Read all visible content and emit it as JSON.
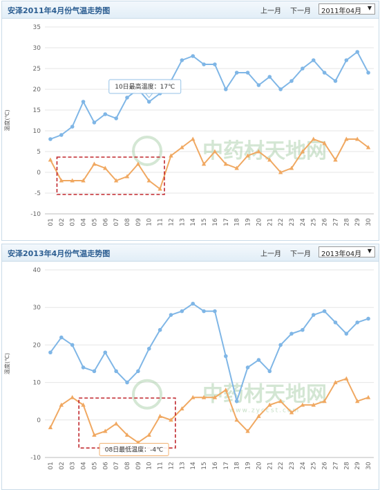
{
  "panels": [
    {
      "title": "安泽2011年4月份气温走势图",
      "prev_label": "上一月",
      "next_label": "下一月",
      "month_select": "2011年04月",
      "ylabel": "温度(℃)",
      "tooltip": "10日最高温度：17℃",
      "watermark": "中药材天地网",
      "watermark_url": ""
    },
    {
      "title": "安泽2013年4月份气温走势图",
      "prev_label": "上一月",
      "next_label": "下一月",
      "month_select": "2013年04月",
      "ylabel": "温度(℃)",
      "tooltip": "08日最低温度：-4℃",
      "watermark": "中药材天地网",
      "watermark_url": "www.zyccst.com"
    }
  ],
  "colors": {
    "high": "#7fb6e6",
    "low": "#f0a861",
    "highlight_box": "#c0262c"
  },
  "chart_data": [
    {
      "type": "line",
      "title": "安泽2011年4月份气温走势图",
      "ylabel": "温度(℃)",
      "ylim": [
        -10,
        35
      ],
      "yticks": [
        -10,
        -5,
        0,
        5,
        10,
        15,
        20,
        25,
        30,
        35
      ],
      "categories": [
        "01",
        "02",
        "03",
        "04",
        "05",
        "06",
        "07",
        "08",
        "09",
        "10",
        "11",
        "12",
        "13",
        "14",
        "15",
        "16",
        "17",
        "18",
        "19",
        "20",
        "21",
        "22",
        "23",
        "24",
        "25",
        "26",
        "27",
        "28",
        "29",
        "30"
      ],
      "series": [
        {
          "values": [
            8,
            9,
            11,
            17,
            12,
            14,
            13,
            18,
            20,
            17,
            19,
            22,
            27,
            28,
            26,
            26,
            20,
            24,
            24,
            21,
            23,
            20,
            22,
            25,
            27,
            24,
            22,
            27,
            29,
            24
          ],
          "color": "#7fb6e6"
        },
        {
          "values": [
            3,
            -2,
            -2,
            -2,
            2,
            1,
            -2,
            -1,
            2,
            -2,
            -4,
            4,
            6,
            8,
            2,
            5,
            2,
            1,
            4,
            5,
            3,
            0,
            1,
            5,
            8,
            7,
            3,
            8,
            8,
            6
          ],
          "color": "#f0a861"
        }
      ],
      "highlight_range": [
        2,
        11
      ],
      "grid": true
    },
    {
      "type": "line",
      "title": "安泽2013年4月份气温走势图",
      "ylabel": "温度(℃)",
      "ylim": [
        -10,
        40
      ],
      "yticks": [
        -10,
        0,
        10,
        20,
        30,
        40
      ],
      "categories": [
        "01",
        "02",
        "03",
        "04",
        "05",
        "06",
        "07",
        "08",
        "09",
        "10",
        "11",
        "12",
        "13",
        "14",
        "15",
        "16",
        "17",
        "18",
        "19",
        "20",
        "21",
        "22",
        "23",
        "24",
        "25",
        "26",
        "27",
        "28",
        "29",
        "30"
      ],
      "series": [
        {
          "values": [
            18,
            22,
            20,
            14,
            13,
            18,
            13,
            10,
            13,
            19,
            24,
            28,
            29,
            31,
            29,
            29,
            17,
            5,
            14,
            16,
            13,
            20,
            23,
            24,
            28,
            29,
            26,
            23,
            26,
            27
          ],
          "color": "#7fb6e6"
        },
        {
          "values": [
            -2,
            4,
            6,
            4,
            -4,
            -3,
            -1,
            -4,
            -6,
            -4,
            1,
            0,
            3,
            6,
            6,
            6,
            8,
            0,
            -3,
            1,
            4,
            5,
            2,
            4,
            4,
            5,
            10,
            11,
            5,
            6
          ],
          "color": "#f0a861"
        }
      ],
      "highlight_range": [
        4,
        12
      ],
      "grid": true
    }
  ]
}
